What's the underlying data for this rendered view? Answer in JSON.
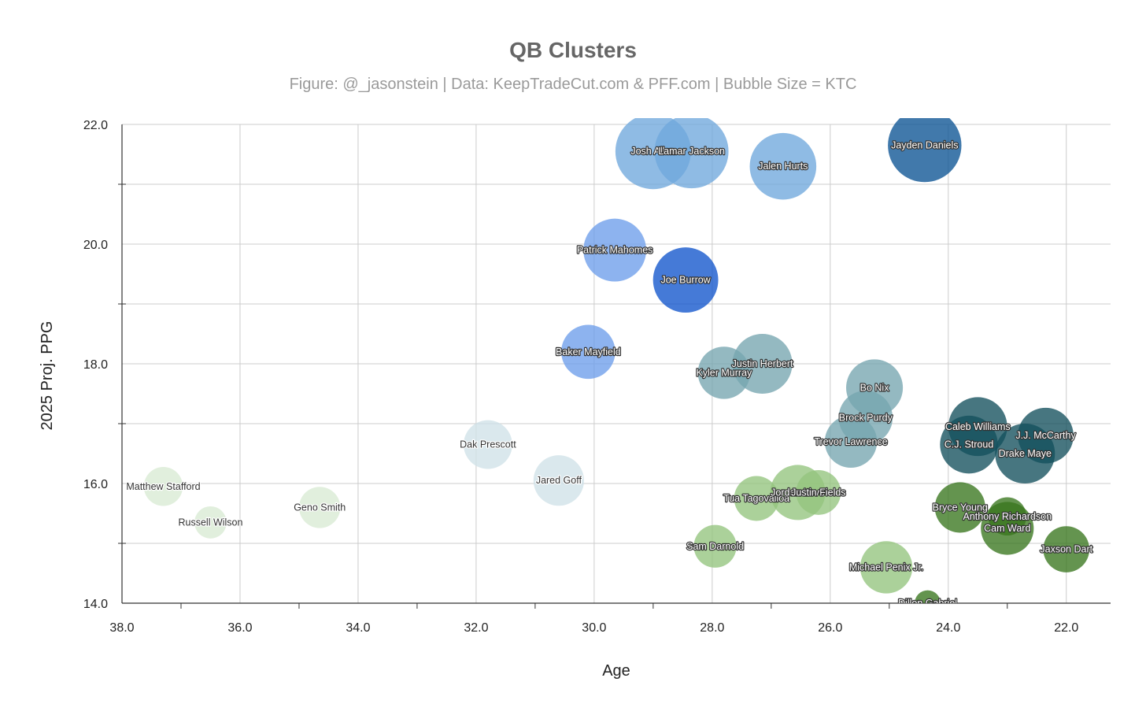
{
  "chart_data": {
    "type": "bubble",
    "title": "QB Clusters",
    "subtitle": "Figure: @_jasonstein | Data: KeepTradeCut.com & PFF.com | Bubble Size = KTC",
    "xlabel": "Age",
    "ylabel": "2025 Proj. PPG",
    "xlim": [
      38.0,
      21.25
    ],
    "ylim": [
      14.0,
      22.0
    ],
    "x_reversed": true,
    "x_ticks": [
      "38.0",
      "36.0",
      "34.0",
      "32.0",
      "30.0",
      "28.0",
      "26.0",
      "24.0",
      "22.0"
    ],
    "y_ticks": [
      "14.0",
      "16.0",
      "18.0",
      "20.0",
      "22.0"
    ],
    "grid": true,
    "legend": "none",
    "colors": {
      "grid": "#cccccc",
      "axis": "#333333",
      "blue_light": "#6fa8dc",
      "blue_mid": "#6d9eeb",
      "blue_dark": "#1155cc",
      "navy": "#0b5394",
      "teal_light": "#76a5af",
      "teal_dark": "#134f5c",
      "slate": "#cfe2e8",
      "green_pale": "#d9ead3",
      "green_light": "#93c47d",
      "green_dark": "#38761d"
    },
    "points": [
      {
        "name": "Josh Allen",
        "label": "Josh Allen",
        "x": 29.0,
        "y": 21.55,
        "size": 9400,
        "color": "#6fa8dc"
      },
      {
        "name": "Lamar Jackson",
        "label": "Lamar Jackson",
        "x": 28.35,
        "y": 21.55,
        "size": 9000,
        "color": "#6fa8dc"
      },
      {
        "name": "Jalen Hurts",
        "label": "Jalen Hurts",
        "x": 26.8,
        "y": 21.3,
        "size": 7300,
        "color": "#6fa8dc"
      },
      {
        "name": "Jayden Daniels",
        "label": "Jayden Daniels",
        "x": 24.4,
        "y": 21.65,
        "size": 8900,
        "color": "#0b5394"
      },
      {
        "name": "Patrick Mahomes",
        "label": "Patrick Mahomes",
        "x": 29.65,
        "y": 19.9,
        "size": 6500,
        "color": "#6d9eeb"
      },
      {
        "name": "Joe Burrow",
        "label": "Joe Burrow",
        "x": 28.45,
        "y": 19.4,
        "size": 7000,
        "color": "#1155cc"
      },
      {
        "name": "Baker Mayfield",
        "label": "Baker Mayfield",
        "x": 30.1,
        "y": 18.2,
        "size": 4800,
        "color": "#6d9eeb"
      },
      {
        "name": "Kyler Murray",
        "label": "Kyler Murray",
        "x": 27.8,
        "y": 17.85,
        "size": 4500,
        "color": "#76a5af"
      },
      {
        "name": "Justin Herbert",
        "label": "Justin Herbert",
        "x": 27.15,
        "y": 18.0,
        "size": 5900,
        "color": "#76a5af"
      },
      {
        "name": "Bo Nix",
        "label": "Bo Nix",
        "x": 25.25,
        "y": 17.6,
        "size": 5300,
        "color": "#76a5af"
      },
      {
        "name": "Brock Purdy",
        "label": "Brock Purdy",
        "x": 25.4,
        "y": 17.1,
        "size": 4800,
        "color": "#76a5af"
      },
      {
        "name": "Trevor Lawrence",
        "label": "Trevor Lawrence",
        "x": 25.65,
        "y": 16.7,
        "size": 4500,
        "color": "#76a5af"
      },
      {
        "name": "Caleb Williams",
        "label": "Caleb Williams",
        "x": 23.5,
        "y": 16.95,
        "size": 5700,
        "color": "#134f5c"
      },
      {
        "name": "C.J. Stroud",
        "label": "C.J. Stroud",
        "x": 23.65,
        "y": 16.65,
        "size": 5500,
        "color": "#134f5c"
      },
      {
        "name": "J.J. McCarthy",
        "label": "J.J. McCarthy",
        "x": 22.35,
        "y": 16.8,
        "size": 5100,
        "color": "#134f5c"
      },
      {
        "name": "Drake Maye",
        "label": "Drake Maye",
        "x": 22.7,
        "y": 16.5,
        "size": 5900,
        "color": "#134f5c"
      },
      {
        "name": "Dak Prescott",
        "label": "Dak Prescott",
        "x": 31.8,
        "y": 16.65,
        "size": 3900,
        "color": "#cfe2e8"
      },
      {
        "name": "Jared Goff",
        "label": "Jared Goff",
        "x": 30.6,
        "y": 16.05,
        "size": 4200,
        "color": "#cfe2e8"
      },
      {
        "name": "Matthew Stafford",
        "label": "Matthew Stafford",
        "x": 37.3,
        "y": 15.95,
        "size": 2500,
        "color": "#d9ead3"
      },
      {
        "name": "Russell Wilson",
        "label": "Russell Wilson",
        "x": 36.5,
        "y": 15.35,
        "size": 1700,
        "color": "#d9ead3"
      },
      {
        "name": "Geno Smith",
        "label": "Geno Smith",
        "x": 34.65,
        "y": 15.6,
        "size": 2800,
        "color": "#d9ead3"
      },
      {
        "name": "Tua Tagovailoa",
        "label": "Tua Tagovailoa",
        "x": 27.25,
        "y": 15.75,
        "size": 3300,
        "color": "#93c47d"
      },
      {
        "name": "Jordan Love",
        "label": "Jordan Love",
        "x": 26.55,
        "y": 15.85,
        "size": 5000,
        "color": "#93c47d"
      },
      {
        "name": "Justin Fields",
        "label": "Justin Fields",
        "x": 26.2,
        "y": 15.85,
        "size": 3300,
        "color": "#93c47d"
      },
      {
        "name": "Sam Darnold",
        "label": "Sam Darnold",
        "x": 27.95,
        "y": 14.95,
        "size": 3000,
        "color": "#93c47d"
      },
      {
        "name": "Michael Penix Jr.",
        "label": "Michael Penix Jr.",
        "x": 25.05,
        "y": 14.6,
        "size": 4500,
        "color": "#93c47d"
      },
      {
        "name": "Bryce Young",
        "label": "Bryce Young",
        "x": 23.8,
        "y": 15.6,
        "size": 4200,
        "color": "#38761d"
      },
      {
        "name": "Anthony Richardson",
        "label": "Anthony Richardson",
        "x": 23.0,
        "y": 15.45,
        "size": 2400,
        "color": "#38761d"
      },
      {
        "name": "Cam Ward",
        "label": "Cam Ward",
        "x": 23.0,
        "y": 15.25,
        "size": 4600,
        "color": "#38761d"
      },
      {
        "name": "Jaxson Dart",
        "label": "Jaxson Dart",
        "x": 22.0,
        "y": 14.9,
        "size": 3500,
        "color": "#38761d"
      },
      {
        "name": "Dillon Gabriel",
        "label": "Dillon Gabriel",
        "x": 24.35,
        "y": 14.0,
        "size": 1100,
        "color": "#38761d"
      }
    ]
  }
}
